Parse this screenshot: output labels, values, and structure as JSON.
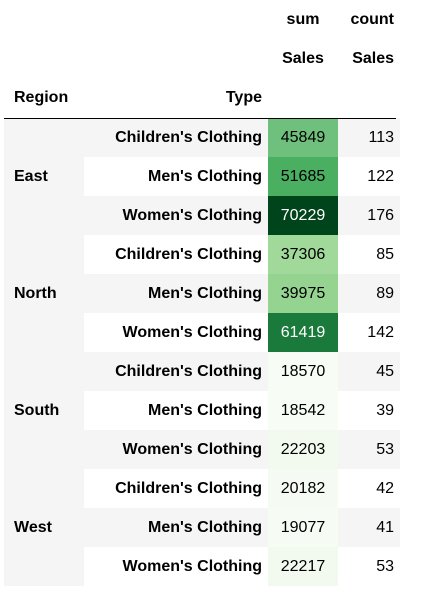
{
  "header": {
    "col_sum_top": "sum",
    "col_count_top": "count",
    "col_sum_sub": "Sales",
    "col_count_sub": "Sales",
    "index_region": "Region",
    "index_type": "Type"
  },
  "rows": [
    {
      "region": "East",
      "type": "Children's Clothing",
      "sum": "45849",
      "count": "113",
      "bg": "#6fc07d",
      "fg": "#000000"
    },
    {
      "region": "",
      "type": "Men's Clothing",
      "sum": "51685",
      "count": "122",
      "bg": "#4aaf60",
      "fg": "#000000"
    },
    {
      "region": "",
      "type": "Women's Clothing",
      "sum": "70229",
      "count": "176",
      "bg": "#00441b",
      "fg": "#ffffff"
    },
    {
      "region": "North",
      "type": "Children's Clothing",
      "sum": "37306",
      "count": "85",
      "bg": "#a1d99b",
      "fg": "#000000"
    },
    {
      "region": "",
      "type": "Men's Clothing",
      "sum": "39975",
      "count": "89",
      "bg": "#94d390",
      "fg": "#000000"
    },
    {
      "region": "",
      "type": "Women's Clothing",
      "sum": "61419",
      "count": "142",
      "bg": "#1a7a3c",
      "fg": "#ffffff"
    },
    {
      "region": "South",
      "type": "Children's Clothing",
      "sum": "18570",
      "count": "45",
      "bg": "#f7fcf5",
      "fg": "#000000"
    },
    {
      "region": "",
      "type": "Men's Clothing",
      "sum": "18542",
      "count": "39",
      "bg": "#f7fcf5",
      "fg": "#000000"
    },
    {
      "region": "",
      "type": "Women's Clothing",
      "sum": "22203",
      "count": "53",
      "bg": "#f2faef",
      "fg": "#000000"
    },
    {
      "region": "West",
      "type": "Children's Clothing",
      "sum": "20182",
      "count": "42",
      "bg": "#f5fbf2",
      "fg": "#000000"
    },
    {
      "region": "",
      "type": "Men's Clothing",
      "sum": "19077",
      "count": "41",
      "bg": "#f6fbf4",
      "fg": "#000000"
    },
    {
      "region": "",
      "type": "Women's Clothing",
      "sum": "22217",
      "count": "53",
      "bg": "#f2faef",
      "fg": "#000000"
    }
  ]
}
